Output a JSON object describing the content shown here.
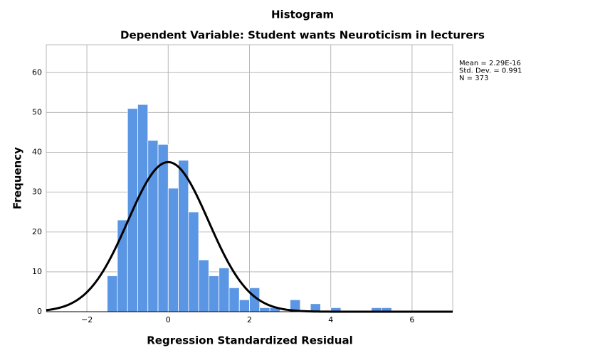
{
  "chart_data": {
    "type": "histogram",
    "title": "Histogram",
    "subtitle": "Dependent Variable: Student wants Neuroticism in lecturers",
    "x_label": "Regression Standardized Residual",
    "y_label": "Frequency",
    "bins": [
      -1.5,
      -1.25,
      -1,
      -0.75,
      -0.5,
      -0.25,
      0,
      0.25,
      0.5,
      0.75,
      1,
      1.25,
      1.5,
      1.75,
      2,
      2.25,
      2.5,
      2.75,
      3,
      3.25,
      3.5,
      3.75,
      4,
      4.25,
      4.5,
      4.75,
      5,
      5.25,
      5.5
    ],
    "values": [
      9,
      23,
      51,
      52,
      43,
      42,
      31,
      38,
      25,
      13,
      9,
      11,
      6,
      3,
      6,
      1,
      1,
      0,
      3,
      0,
      2,
      0,
      1,
      0,
      0,
      0,
      1,
      1
    ],
    "color": "#5a96e3",
    "xlim": [
      -3,
      7
    ],
    "xticks": [
      {
        "value": -2,
        "label": "−2"
      },
      0,
      2,
      4,
      6
    ],
    "ylim": [
      0,
      67
    ],
    "yticks": [
      0,
      10,
      20,
      30,
      40,
      50,
      60
    ],
    "grid": true,
    "normal_curve": {
      "mean": 2.29e-16,
      "sd": 0.991,
      "n": 373,
      "color": "#000000"
    },
    "stats_labels": [
      "Mean = 2.29E-16",
      "Std. Dev. = 0.991",
      "N = 373"
    ]
  }
}
